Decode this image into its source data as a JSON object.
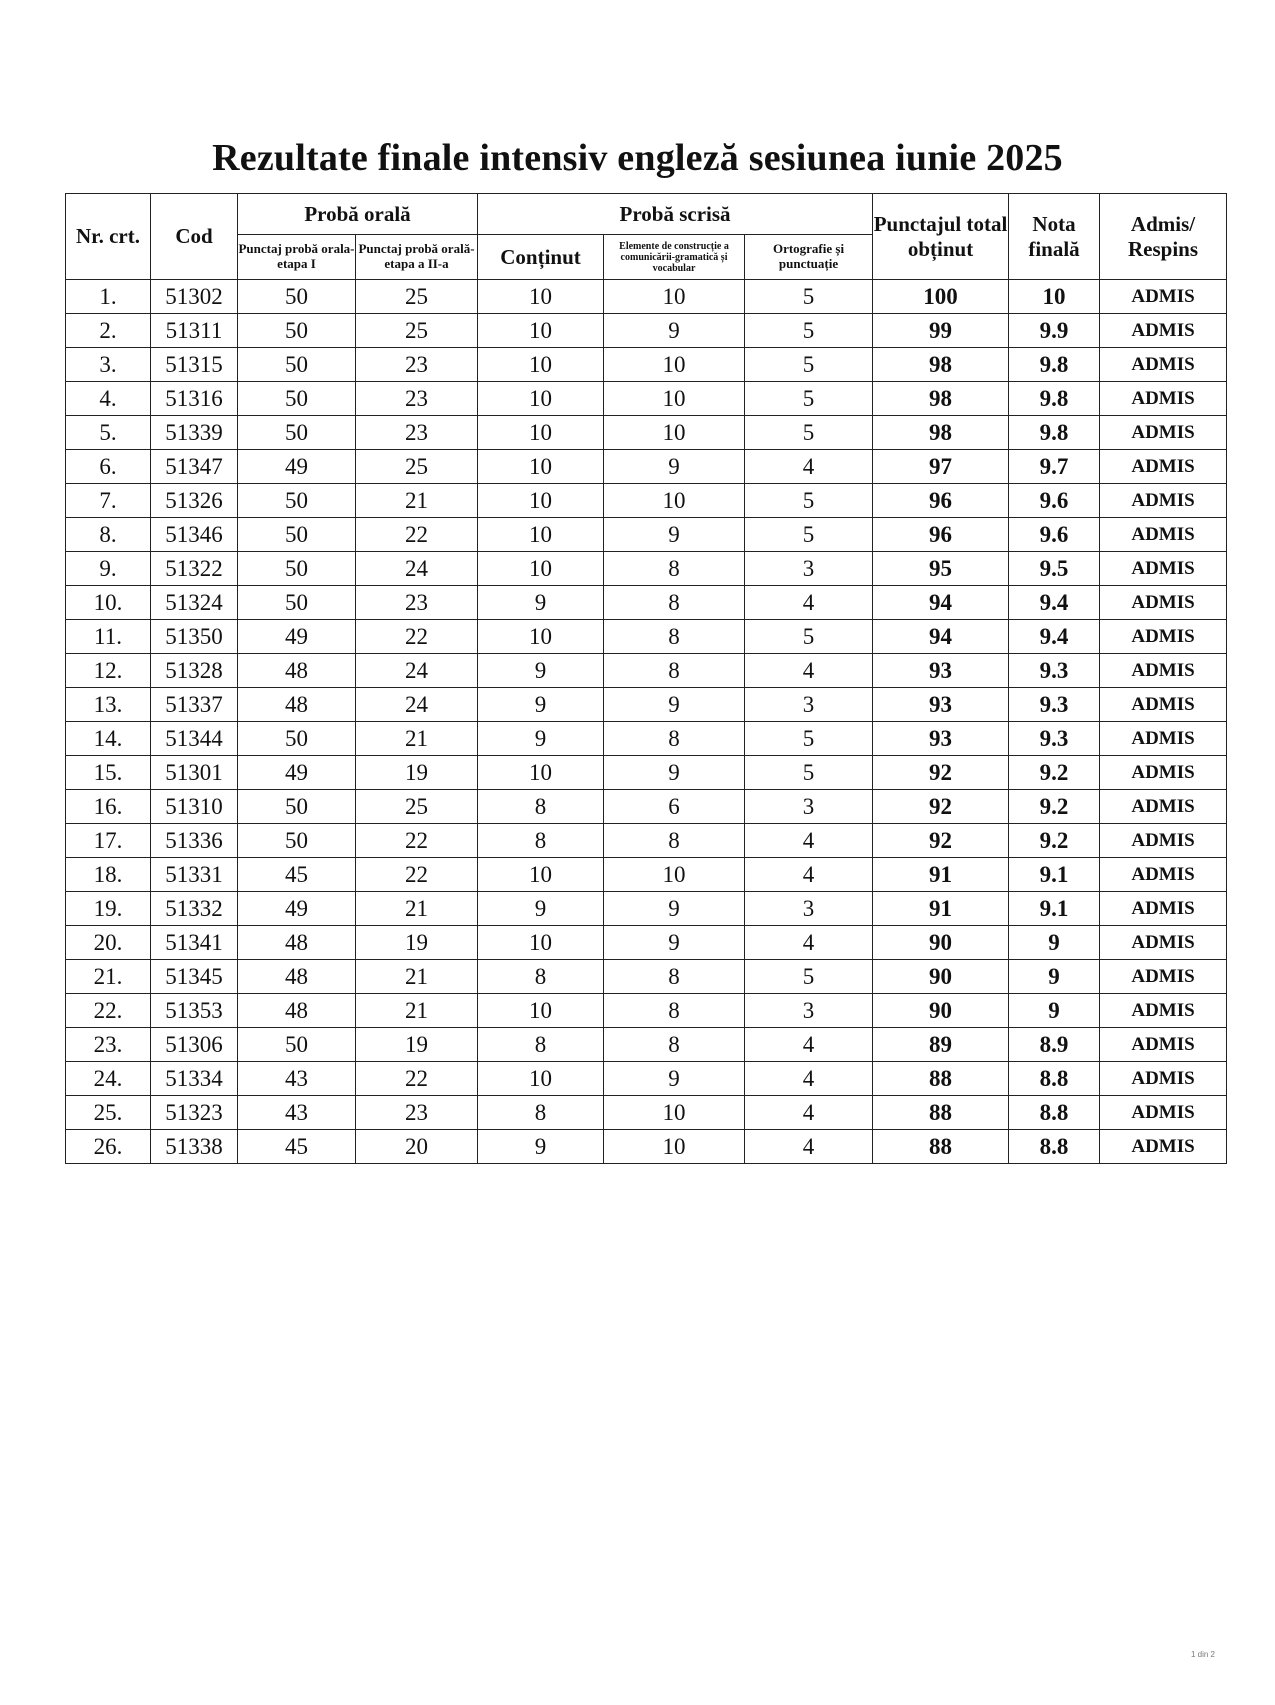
{
  "title": "Rezultate finale intensiv engleză sesiunea iunie 2025",
  "headers": {
    "nr": "Nr. crt.",
    "cod": "Cod",
    "proba_orala": "Probă orală",
    "oral1": "Punctaj probă orala-etapa I",
    "oral2": "Punctaj probă orală-etapa a II-a",
    "proba_scrisa": "Probă scrisă",
    "continut": "Conținut",
    "elemente": "Elemente de construcție a comunicării-gramatică și vocabular",
    "ortografie": "Ortografie și punctuație",
    "punctaj": "Punctajul total obținut",
    "nota": "Nota finală",
    "admis": "Admis/ Respins"
  },
  "rows": [
    [
      "1.",
      "51302",
      "50",
      "25",
      "10",
      "10",
      "5",
      "100",
      "10",
      "ADMIS"
    ],
    [
      "2.",
      "51311",
      "50",
      "25",
      "10",
      "9",
      "5",
      "99",
      "9.9",
      "ADMIS"
    ],
    [
      "3.",
      "51315",
      "50",
      "23",
      "10",
      "10",
      "5",
      "98",
      "9.8",
      "ADMIS"
    ],
    [
      "4.",
      "51316",
      "50",
      "23",
      "10",
      "10",
      "5",
      "98",
      "9.8",
      "ADMIS"
    ],
    [
      "5.",
      "51339",
      "50",
      "23",
      "10",
      "10",
      "5",
      "98",
      "9.8",
      "ADMIS"
    ],
    [
      "6.",
      "51347",
      "49",
      "25",
      "10",
      "9",
      "4",
      "97",
      "9.7",
      "ADMIS"
    ],
    [
      "7.",
      "51326",
      "50",
      "21",
      "10",
      "10",
      "5",
      "96",
      "9.6",
      "ADMIS"
    ],
    [
      "8.",
      "51346",
      "50",
      "22",
      "10",
      "9",
      "5",
      "96",
      "9.6",
      "ADMIS"
    ],
    [
      "9.",
      "51322",
      "50",
      "24",
      "10",
      "8",
      "3",
      "95",
      "9.5",
      "ADMIS"
    ],
    [
      "10.",
      "51324",
      "50",
      "23",
      "9",
      "8",
      "4",
      "94",
      "9.4",
      "ADMIS"
    ],
    [
      "11.",
      "51350",
      "49",
      "22",
      "10",
      "8",
      "5",
      "94",
      "9.4",
      "ADMIS"
    ],
    [
      "12.",
      "51328",
      "48",
      "24",
      "9",
      "8",
      "4",
      "93",
      "9.3",
      "ADMIS"
    ],
    [
      "13.",
      "51337",
      "48",
      "24",
      "9",
      "9",
      "3",
      "93",
      "9.3",
      "ADMIS"
    ],
    [
      "14.",
      "51344",
      "50",
      "21",
      "9",
      "8",
      "5",
      "93",
      "9.3",
      "ADMIS"
    ],
    [
      "15.",
      "51301",
      "49",
      "19",
      "10",
      "9",
      "5",
      "92",
      "9.2",
      "ADMIS"
    ],
    [
      "16.",
      "51310",
      "50",
      "25",
      "8",
      "6",
      "3",
      "92",
      "9.2",
      "ADMIS"
    ],
    [
      "17.",
      "51336",
      "50",
      "22",
      "8",
      "8",
      "4",
      "92",
      "9.2",
      "ADMIS"
    ],
    [
      "18.",
      "51331",
      "45",
      "22",
      "10",
      "10",
      "4",
      "91",
      "9.1",
      "ADMIS"
    ],
    [
      "19.",
      "51332",
      "49",
      "21",
      "9",
      "9",
      "3",
      "91",
      "9.1",
      "ADMIS"
    ],
    [
      "20.",
      "51341",
      "48",
      "19",
      "10",
      "9",
      "4",
      "90",
      "9",
      "ADMIS"
    ],
    [
      "21.",
      "51345",
      "48",
      "21",
      "8",
      "8",
      "5",
      "90",
      "9",
      "ADMIS"
    ],
    [
      "22.",
      "51353",
      "48",
      "21",
      "10",
      "8",
      "3",
      "90",
      "9",
      "ADMIS"
    ],
    [
      "23.",
      "51306",
      "50",
      "19",
      "8",
      "8",
      "4",
      "89",
      "8.9",
      "ADMIS"
    ],
    [
      "24.",
      "51334",
      "43",
      "22",
      "10",
      "9",
      "4",
      "88",
      "8.8",
      "ADMIS"
    ],
    [
      "25.",
      "51323",
      "43",
      "23",
      "8",
      "10",
      "4",
      "88",
      "8.8",
      "ADMIS"
    ],
    [
      "26.",
      "51338",
      "45",
      "20",
      "9",
      "10",
      "4",
      "88",
      "8.8",
      "ADMIS"
    ]
  ],
  "footer": "1 din 2"
}
